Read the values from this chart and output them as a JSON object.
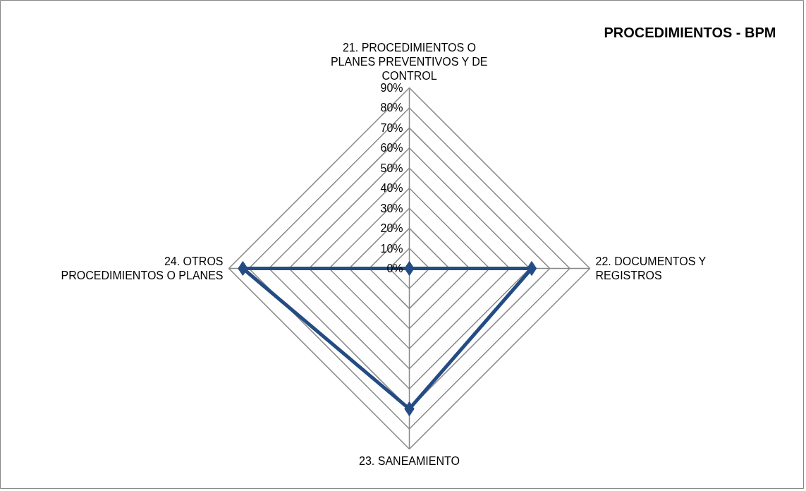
{
  "chart_data": {
    "type": "radar",
    "title": "PROCEDIMIENTOS - BPM",
    "categories": [
      "21. PROCEDIMIENTOS O PLANES PREVENTIVOS Y DE CONTROL",
      "22. DOCUMENTOS Y REGISTROS",
      "23. SANEAMIENTO",
      "24. OTROS PROCEDIMIENTOS O PLANES"
    ],
    "series": [
      {
        "color": "#244c84",
        "values": [
          0,
          61,
          70,
          83
        ]
      }
    ],
    "ylim": [
      0,
      90
    ],
    "yticks": [
      {
        "value": 0,
        "label": "0%"
      },
      {
        "value": 10,
        "label": "10%"
      },
      {
        "value": 20,
        "label": "20%"
      },
      {
        "value": 30,
        "label": "30%"
      },
      {
        "value": 40,
        "label": "40%"
      },
      {
        "value": 50,
        "label": "50%"
      },
      {
        "value": 60,
        "label": "60%"
      },
      {
        "value": 70,
        "label": "70%"
      },
      {
        "value": 80,
        "label": "80%"
      },
      {
        "value": 90,
        "label": "90%"
      }
    ],
    "marker": "diamond"
  }
}
